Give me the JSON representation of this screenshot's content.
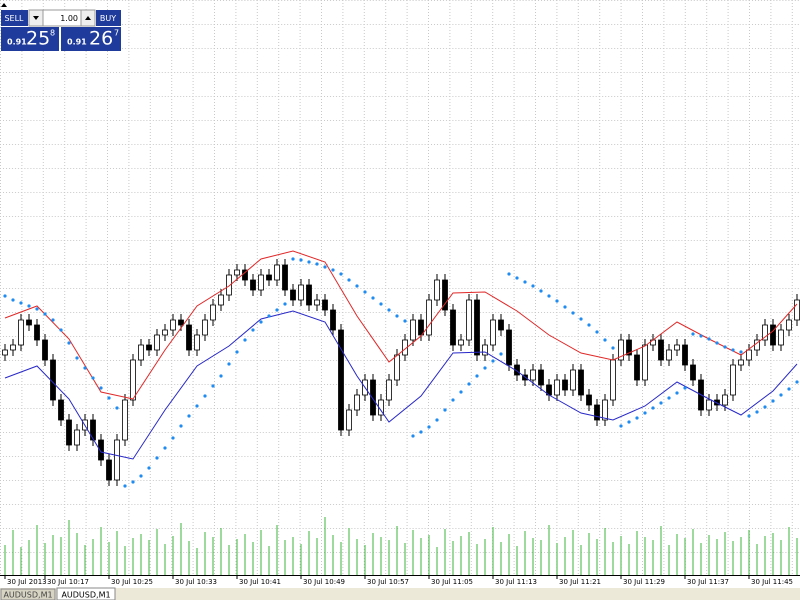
{
  "quote_panel": {
    "sell_label": "SELL",
    "lot": "1.00",
    "buy_label": "BUY",
    "sell_price": {
      "prefix": "0.91",
      "big": "25",
      "sup": "8"
    },
    "buy_price": {
      "prefix": "0.91",
      "big": "26",
      "sup": "7"
    }
  },
  "chart_data": {
    "type": "candlestick",
    "ylim": [
      0.90983,
      0.91558
    ],
    "up_color": "#ffffff",
    "down_color": "#000000",
    "outline_color": "#000000",
    "open": [
      0.91203,
      0.91208,
      0.91213,
      0.91238,
      0.91233,
      0.91218,
      0.91198,
      0.91158,
      0.91138,
      0.91113,
      0.91128,
      0.91138,
      0.91118,
      0.91098,
      0.91078,
      0.91118,
      0.91158,
      0.91198,
      0.91213,
      0.91208,
      0.91223,
      0.91228,
      0.91238,
      0.91233,
      0.91208,
      0.91223,
      0.91238,
      0.91253,
      0.91263,
      0.91283,
      0.91288,
      0.91278,
      0.91268,
      0.91283,
      0.91278,
      0.91293,
      0.91268,
      0.91258,
      0.91273,
      0.91253,
      0.91258,
      0.91248,
      0.91228,
      0.91128,
      0.91148,
      0.91163,
      0.91178,
      0.91143,
      0.91158,
      0.91178,
      0.91203,
      0.91218,
      0.91238,
      0.91223,
      0.91258,
      0.91278,
      0.91248,
      0.91213,
      0.91218,
      0.91258,
      0.91203,
      0.91213,
      0.91238,
      0.91228,
      0.91193,
      0.91183,
      0.91178,
      0.91188,
      0.91173,
      0.91163,
      0.91178,
      0.91168,
      0.91188,
      0.91163,
      0.91153,
      0.91138,
      0.91158,
      0.91198,
      0.91218,
      0.91203,
      0.91178,
      0.91213,
      0.91218,
      0.91198,
      0.91208,
      0.91213,
      0.91193,
      0.91178,
      0.91148,
      0.91158,
      0.91153,
      0.91163,
      0.91193,
      0.91198,
      0.91208,
      0.91218,
      0.91233,
      0.91213,
      0.91228,
      0.91238
    ],
    "high": [
      0.91214,
      0.91219,
      0.91244,
      0.91244,
      0.91239,
      0.91224,
      0.91204,
      0.91164,
      0.91144,
      0.91134,
      0.91144,
      0.91144,
      0.91124,
      0.91104,
      0.91124,
      0.91164,
      0.91204,
      0.91219,
      0.91219,
      0.91229,
      0.91234,
      0.91244,
      0.91244,
      0.91239,
      0.91229,
      0.91244,
      0.91259,
      0.91269,
      0.91289,
      0.91294,
      0.91294,
      0.91284,
      0.91289,
      0.91289,
      0.91299,
      0.91299,
      0.91274,
      0.91279,
      0.91279,
      0.91264,
      0.91264,
      0.91254,
      0.91234,
      0.91154,
      0.91169,
      0.91184,
      0.91184,
      0.91164,
      0.91184,
      0.91209,
      0.91224,
      0.91244,
      0.91244,
      0.91264,
      0.91284,
      0.91284,
      0.91254,
      0.91224,
      0.91264,
      0.91264,
      0.91219,
      0.91244,
      0.91244,
      0.91234,
      0.91199,
      0.91189,
      0.91194,
      0.91194,
      0.91179,
      0.91184,
      0.91184,
      0.91194,
      0.91194,
      0.91169,
      0.91159,
      0.91164,
      0.91204,
      0.91224,
      0.91224,
      0.91209,
      0.91219,
      0.91224,
      0.91224,
      0.91214,
      0.91219,
      0.91219,
      0.91199,
      0.91184,
      0.91164,
      0.91164,
      0.91169,
      0.91199,
      0.91204,
      0.91214,
      0.91224,
      0.91239,
      0.91239,
      0.91234,
      0.91244,
      0.91264
    ],
    "low": [
      0.91197,
      0.91202,
      0.91207,
      0.91227,
      0.91212,
      0.91192,
      0.91152,
      0.91132,
      0.91107,
      0.91107,
      0.91122,
      0.91112,
      0.91092,
      0.91072,
      0.91072,
      0.91112,
      0.91152,
      0.91192,
      0.91202,
      0.91202,
      0.91217,
      0.91222,
      0.91227,
      0.91202,
      0.91202,
      0.91217,
      0.91232,
      0.91247,
      0.91257,
      0.91277,
      0.91272,
      0.91262,
      0.91262,
      0.91272,
      0.91272,
      0.91262,
      0.91252,
      0.91252,
      0.91247,
      0.91247,
      0.91242,
      0.91222,
      0.91122,
      0.91122,
      0.91142,
      0.91157,
      0.91137,
      0.91137,
      0.91152,
      0.91172,
      0.91197,
      0.91212,
      0.91217,
      0.91217,
      0.91252,
      0.91242,
      0.91207,
      0.91207,
      0.91212,
      0.91197,
      0.91197,
      0.91207,
      0.91222,
      0.91187,
      0.91177,
      0.91172,
      0.91172,
      0.91167,
      0.91157,
      0.91157,
      0.91162,
      0.91162,
      0.91157,
      0.91147,
      0.91132,
      0.91132,
      0.91152,
      0.91192,
      0.91197,
      0.91172,
      0.91172,
      0.91207,
      0.91192,
      0.91192,
      0.91202,
      0.91187,
      0.91172,
      0.91142,
      0.91142,
      0.91147,
      0.91147,
      0.91157,
      0.91187,
      0.91192,
      0.91202,
      0.91212,
      0.91207,
      0.91207,
      0.91222,
      0.91232
    ],
    "close": [
      0.91208,
      0.91213,
      0.91238,
      0.91233,
      0.91218,
      0.91198,
      0.91158,
      0.91138,
      0.91113,
      0.91128,
      0.91138,
      0.91118,
      0.91098,
      0.91078,
      0.91118,
      0.91158,
      0.91198,
      0.91213,
      0.91208,
      0.91223,
      0.91228,
      0.91238,
      0.91233,
      0.91208,
      0.91223,
      0.91238,
      0.91253,
      0.91263,
      0.91283,
      0.91288,
      0.91278,
      0.91268,
      0.91283,
      0.91278,
      0.91293,
      0.91268,
      0.91258,
      0.91273,
      0.91253,
      0.91258,
      0.91248,
      0.91228,
      0.91128,
      0.91148,
      0.91163,
      0.91178,
      0.91143,
      0.91158,
      0.91178,
      0.91203,
      0.91218,
      0.91238,
      0.91223,
      0.91258,
      0.91278,
      0.91248,
      0.91213,
      0.91218,
      0.91258,
      0.91203,
      0.91213,
      0.91238,
      0.91228,
      0.91193,
      0.91183,
      0.91178,
      0.91188,
      0.91173,
      0.91163,
      0.91178,
      0.91168,
      0.91188,
      0.91163,
      0.91153,
      0.91138,
      0.91158,
      0.91198,
      0.91218,
      0.91203,
      0.91178,
      0.91213,
      0.91218,
      0.91198,
      0.91208,
      0.91213,
      0.91193,
      0.91178,
      0.91148,
      0.91158,
      0.91153,
      0.91163,
      0.91193,
      0.91198,
      0.91208,
      0.91218,
      0.91233,
      0.91213,
      0.91228,
      0.91238,
      0.91258
    ],
    "indicators": [
      {
        "type": "line",
        "color": "#e02828",
        "x": [
          0,
          4,
          8,
          12,
          16,
          20,
          24,
          28,
          32,
          36,
          40,
          44,
          48,
          52,
          56,
          60,
          64,
          68,
          72,
          76,
          80,
          84,
          88,
          92,
          96,
          99
        ],
        "values": [
          0.9124,
          0.91252,
          0.91219,
          0.91166,
          0.91159,
          0.91208,
          0.91252,
          0.91272,
          0.91299,
          0.91307,
          0.91296,
          0.91242,
          0.91196,
          0.91222,
          0.91265,
          0.91266,
          0.91247,
          0.91223,
          0.91205,
          0.91198,
          0.91212,
          0.91236,
          0.91219,
          0.91203,
          0.91227,
          0.91254
        ]
      },
      {
        "type": "line",
        "color": "#2828c8",
        "x": [
          0,
          4,
          8,
          12,
          16,
          20,
          24,
          28,
          32,
          36,
          40,
          44,
          48,
          52,
          56,
          60,
          64,
          68,
          72,
          76,
          80,
          84,
          88,
          92,
          96,
          99
        ],
        "values": [
          0.9118,
          0.91192,
          0.91159,
          0.91106,
          0.91099,
          0.91148,
          0.91192,
          0.91212,
          0.91239,
          0.91247,
          0.91236,
          0.91182,
          0.91136,
          0.91162,
          0.91205,
          0.91206,
          0.91187,
          0.91163,
          0.91145,
          0.91138,
          0.91152,
          0.91176,
          0.91159,
          0.91143,
          0.91167,
          0.91194
        ]
      },
      {
        "type": "dots",
        "color": "#1e8cf0",
        "values": [
          0.91262,
          0.91258,
          0.91255,
          0.91252,
          0.91249,
          0.91244,
          0.91238,
          0.91228,
          0.91215,
          0.912,
          0.9119,
          0.9118,
          0.9117,
          0.9116,
          0.9115,
          0.91072,
          0.91076,
          0.91082,
          0.9109,
          0.911,
          0.9111,
          0.9112,
          0.91132,
          0.91142,
          0.91152,
          0.91162,
          0.91172,
          0.91182,
          0.91194,
          0.91206,
          0.91218,
          0.91228,
          0.91236,
          0.91242,
          0.91248,
          0.91254,
          0.91299,
          0.91298,
          0.91296,
          0.91294,
          0.91291,
          0.91288,
          0.91284,
          0.91278,
          0.91272,
          0.91266,
          0.9126,
          0.91254,
          0.91248,
          0.91242,
          0.91237,
          0.91122,
          0.91126,
          0.91131,
          0.91138,
          0.91148,
          0.91158,
          0.91166,
          0.91174,
          0.91182,
          0.9119,
          0.91197,
          0.91204,
          0.91284,
          0.9128,
          0.91276,
          0.91272,
          0.91267,
          0.91262,
          0.91257,
          0.91251,
          0.91245,
          0.91239,
          0.91233,
          0.91226,
          0.91218,
          0.9121,
          0.91132,
          0.91136,
          0.9114,
          0.91145,
          0.9115,
          0.91155,
          0.9116,
          0.91165,
          0.9117,
          0.91224,
          0.91222,
          0.91219,
          0.91215,
          0.91211,
          0.91208,
          0.91206,
          0.91142,
          0.91146,
          0.91151,
          0.91157,
          0.91163,
          0.91169,
          0.91176
        ]
      }
    ],
    "volume": {
      "color": "#3cb43c",
      "ylim": [
        0,
        60
      ],
      "values": [
        30,
        45,
        28,
        35,
        50,
        32,
        40,
        38,
        55,
        42,
        30,
        36,
        48,
        33,
        44,
        29,
        37,
        41,
        35,
        46,
        31,
        39,
        52,
        34,
        27,
        43,
        38,
        47,
        30,
        36,
        41,
        33,
        45,
        29,
        50,
        35,
        38,
        31,
        44,
        37,
        58,
        40,
        33,
        47,
        36,
        30,
        42,
        38,
        35,
        49,
        32,
        45,
        37,
        40,
        28,
        46,
        34,
        39,
        43,
        31,
        36,
        48,
        33,
        41,
        29,
        44,
        37,
        35,
        50,
        32,
        38,
        45,
        30,
        42,
        36,
        47,
        33,
        39,
        31,
        44,
        38,
        35,
        49,
        30,
        41,
        37,
        46,
        32,
        40,
        36,
        43,
        34,
        38,
        45,
        31,
        39,
        42,
        35,
        48,
        37
      ]
    },
    "xticks": [
      {
        "value": 0,
        "label": "30 Jul 2013"
      },
      {
        "value": 5,
        "label": "30 Jul 10:17"
      },
      {
        "value": 13,
        "label": "30 Jul 10:25"
      },
      {
        "value": 21,
        "label": "30 Jul 10:33"
      },
      {
        "value": 29,
        "label": "30 Jul 10:41"
      },
      {
        "value": 37,
        "label": "30 Jul 10:49"
      },
      {
        "value": 45,
        "label": "30 Jul 10:57"
      },
      {
        "value": 53,
        "label": "30 Jul 11:05"
      },
      {
        "value": 61,
        "label": "30 Jul 11:13"
      },
      {
        "value": 69,
        "label": "30 Jul 11:21"
      },
      {
        "value": 77,
        "label": "30 Jul 11:29"
      },
      {
        "value": 85,
        "label": "30 Jul 11:37"
      },
      {
        "value": 93,
        "label": "30 Jul 11:45"
      }
    ]
  },
  "tabs": [
    "AUDUSD,M1",
    "AUDUSD,M1"
  ]
}
